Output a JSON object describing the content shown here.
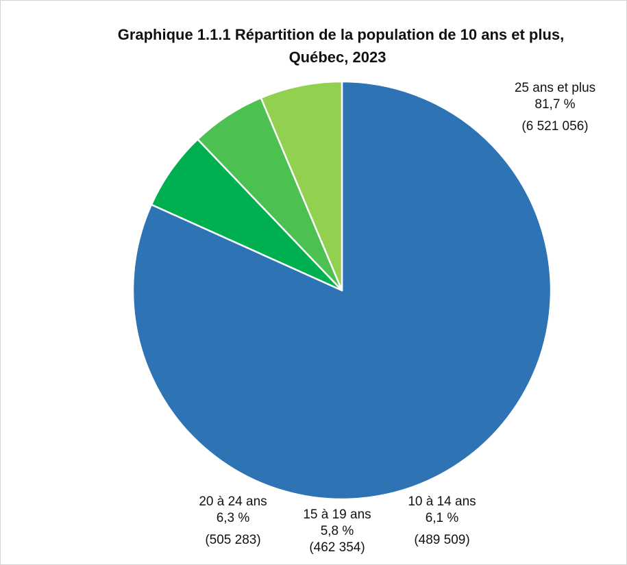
{
  "chart_data": {
    "type": "pie",
    "title_line1": "Graphique 1.1.1  Répartition de la population de 10 ans et plus,",
    "title_line2": "Québec, 2023",
    "start_angle_deg": 0,
    "direction": "clockwise",
    "slices": [
      {
        "name": "25 ans et plus",
        "percent_label": "81,7 %",
        "count_label": "(6 521 056)",
        "value": 6521056,
        "color": "#2e74b5"
      },
      {
        "name": "10 à 14 ans",
        "percent_label": "6,1 %",
        "count_label": "(489 509)",
        "value": 489509,
        "color": "#00b050"
      },
      {
        "name": "15 à 19 ans",
        "percent_label": "5,8 %",
        "count_label": "(462 354)",
        "value": 462354,
        "color": "#4cc152"
      },
      {
        "name": "20 à 24 ans",
        "percent_label": "6,3 %",
        "count_label": "(505 283)",
        "value": 505283,
        "color": "#92d050"
      }
    ]
  }
}
